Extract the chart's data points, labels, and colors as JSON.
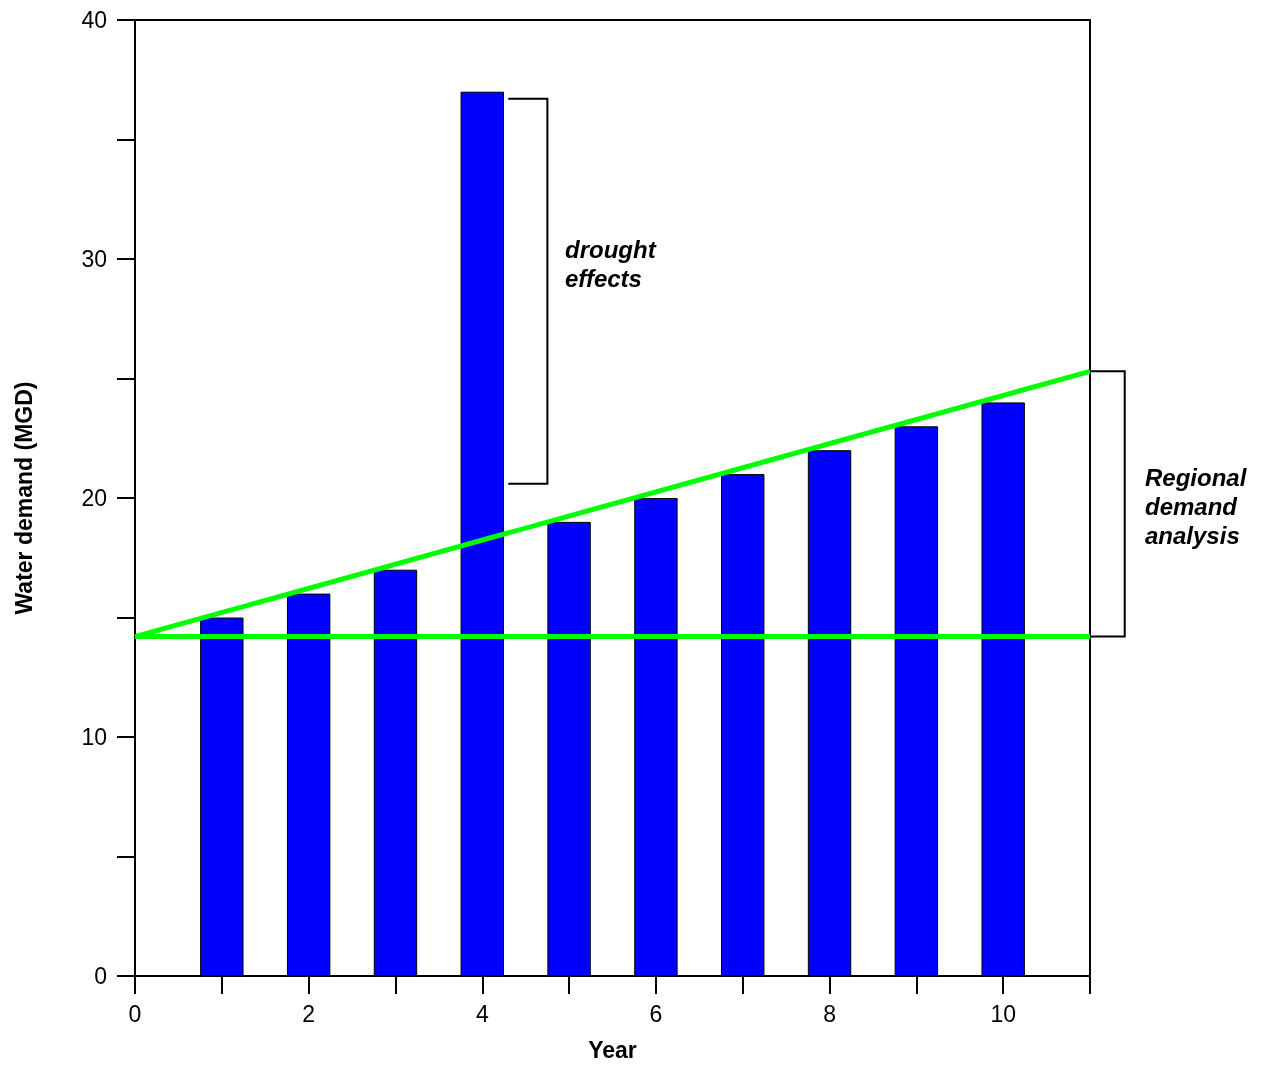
{
  "chart_data": {
    "type": "bar",
    "xlabel": "Year",
    "ylabel": "Water demand (MGD)",
    "x": [
      1,
      2,
      3,
      4,
      5,
      6,
      7,
      8,
      9,
      10
    ],
    "series": [
      {
        "color": "#0000ff",
        "values": [
          15,
          16,
          17,
          37,
          19,
          20,
          21,
          22,
          23,
          24
        ]
      },
      {
        "type": "line",
        "color": "#00ff00",
        "x": [
          0,
          11
        ],
        "values": [
          14.2,
          25.3
        ]
      }
    ],
    "ref_lines": [
      {
        "axis": "y",
        "value": 14.2,
        "color": "#00ff00"
      }
    ],
    "xlim": [
      0,
      11
    ],
    "xticks": [
      0,
      2,
      4,
      6,
      8,
      10
    ],
    "ylim": [
      0,
      40
    ],
    "yticks": [
      0,
      10,
      20,
      30,
      40
    ],
    "annotations": [
      "drought effects",
      "Regional demand analysis"
    ],
    "marker": "none",
    "grid": false
  }
}
